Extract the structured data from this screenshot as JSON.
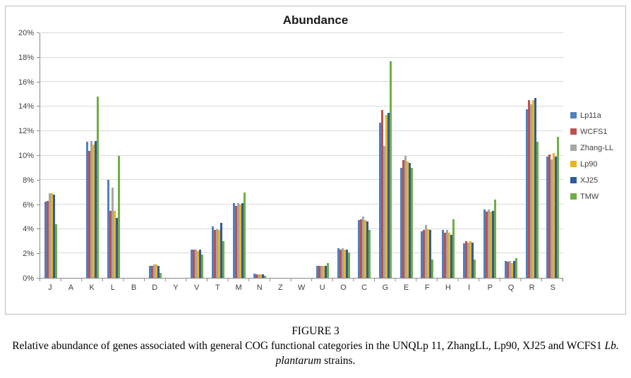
{
  "caption": {
    "figure_label": "FIGURE 3",
    "text_before": "Relative abundance of genes associated with general COG functional categories in the UNQLp 11, ZhangLL, Lp90, XJ25 and WCFS1 ",
    "italic": "Lb. plantarum",
    "text_after": " strains."
  },
  "chart_data": {
    "type": "bar",
    "title": "Abundance",
    "categories": [
      "J",
      "A",
      "K",
      "L",
      "B",
      "D",
      "Y",
      "V",
      "T",
      "M",
      "N",
      "Z",
      "W",
      "U",
      "O",
      "C",
      "G",
      "E",
      "F",
      "H",
      "I",
      "P",
      "Q",
      "R",
      "S"
    ],
    "series": [
      {
        "name": "Lp11a",
        "color": "#4f81bd",
        "values": [
          6.2,
          0,
          11.1,
          8.0,
          0,
          1.0,
          0,
          2.3,
          4.2,
          6.1,
          0.35,
          0,
          0,
          1.0,
          2.4,
          4.7,
          12.7,
          9.0,
          3.8,
          3.9,
          2.8,
          5.6,
          1.4,
          13.8,
          9.9
        ]
      },
      {
        "name": "WCFS1",
        "color": "#c0504d",
        "values": [
          6.3,
          0,
          10.4,
          5.5,
          0,
          1.0,
          0,
          2.3,
          3.9,
          5.9,
          0.3,
          0,
          0,
          1.0,
          2.3,
          4.8,
          13.7,
          9.6,
          3.9,
          3.7,
          3.0,
          5.4,
          1.3,
          14.5,
          10.1
        ]
      },
      {
        "name": "Zhang-LL",
        "color": "#a6a6a6",
        "values": [
          6.9,
          0,
          11.2,
          7.4,
          0,
          1.1,
          0,
          2.3,
          4.0,
          6.1,
          0.3,
          0,
          0,
          1.0,
          2.4,
          5.0,
          10.8,
          10.0,
          4.3,
          3.9,
          2.9,
          5.6,
          1.4,
          14.2,
          9.7
        ]
      },
      {
        "name": "Lp90",
        "color": "#e8b420",
        "values": [
          6.9,
          0,
          10.9,
          5.5,
          0,
          1.1,
          0,
          2.2,
          3.9,
          6.0,
          0.3,
          0,
          0,
          1.0,
          2.3,
          4.7,
          13.3,
          9.5,
          4.0,
          3.7,
          3.0,
          5.4,
          1.2,
          14.5,
          10.2
        ]
      },
      {
        "name": "XJ25",
        "color": "#2e5a9e",
        "values": [
          6.8,
          0,
          11.2,
          4.9,
          0,
          1.0,
          0,
          2.3,
          4.5,
          6.1,
          0.3,
          0,
          0,
          1.0,
          2.3,
          4.6,
          13.5,
          9.4,
          3.9,
          3.5,
          2.9,
          5.5,
          1.4,
          14.7,
          9.9
        ]
      },
      {
        "name": "TMW",
        "color": "#70ad47",
        "values": [
          4.4,
          0,
          14.8,
          10.0,
          0,
          0.4,
          0,
          1.9,
          3.0,
          7.0,
          0.2,
          0,
          0,
          1.2,
          2.1,
          3.9,
          17.7,
          9.0,
          1.5,
          4.8,
          1.5,
          6.4,
          1.6,
          11.1,
          11.5
        ]
      }
    ],
    "ylim": [
      0,
      20
    ],
    "ytick_step": 2,
    "ytick_format": "percent",
    "xlabel": "",
    "ylabel": "",
    "grid": true,
    "legend_position": "right"
  }
}
